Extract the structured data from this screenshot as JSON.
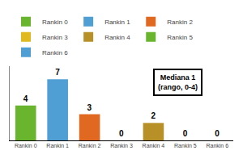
{
  "chart_data": {
    "type": "bar",
    "categories": [
      "Rankin 0",
      "Rankin 1",
      "Rankin 2",
      "Rankin 3",
      "Rankin 4",
      "Rankin 5",
      "Rankin 6"
    ],
    "values": [
      4,
      7,
      3,
      0,
      2,
      0,
      0
    ],
    "colors": [
      "#6ab52e",
      "#4f9fd4",
      "#e06820",
      "#e0b820",
      "#b89028",
      "#6ab52e",
      "#4f9fd4"
    ],
    "ylim": [
      0,
      8.5
    ],
    "yticks": [],
    "tick_labels": "x",
    "grid": false,
    "data_labels": true,
    "legend": "top",
    "annotations": [
      "Mediana 1\n(rango, 0-4)"
    ]
  }
}
